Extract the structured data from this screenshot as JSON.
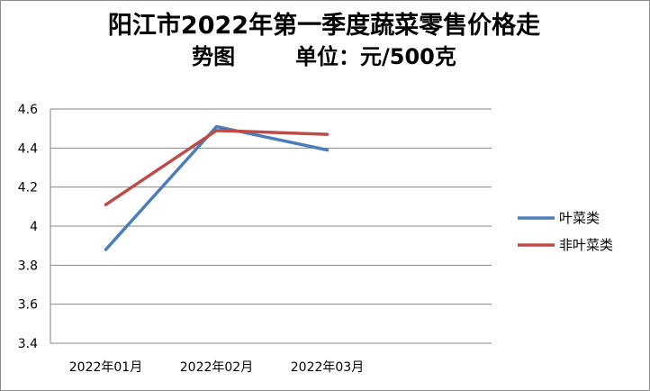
{
  "chart_data": {
    "type": "line",
    "title_line1": "阳江市2022年第一季度蔬菜零售价格走",
    "title_line2": "势图        单位：元/500克",
    "categories": [
      "2022年01月",
      "2022年02月",
      "2022年03月"
    ],
    "y_ticks": [
      "4.6",
      "4.4",
      "4.2",
      "4",
      "3.8",
      "3.6",
      "3.4"
    ],
    "ylim": [
      3.4,
      4.6
    ],
    "grid": true,
    "legend_position": "right",
    "series": [
      {
        "name": "叶菜类",
        "values": [
          3.88,
          4.51,
          4.39
        ],
        "color": "#4a7ebb"
      },
      {
        "name": "非叶菜类",
        "values": [
          4.11,
          4.49,
          4.47
        ],
        "color": "#be4b48"
      }
    ]
  }
}
